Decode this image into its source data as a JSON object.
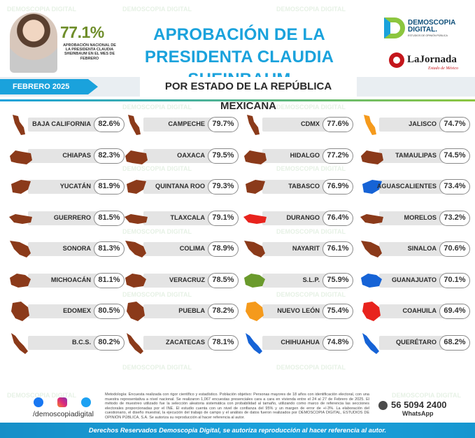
{
  "header": {
    "approval_value": "77.1%",
    "approval_caption": "APROBACIÓN NACIONAL DE LA PRESIDENTA CLAUDIA SHEINBAUM EN EL MES DE FEBRERO",
    "title_line1": "APROBACIÓN DE LA",
    "title_line2": "PRESIDENTA CLAUDIA SHEINBAUM",
    "brand_name": "DEMOSCOPIA DIGITAL.",
    "brand_sub": "ESTUDIOS DE OPINIÓN PÚBLICA",
    "partner_name": "LaJornada",
    "partner_sub": "Estado de México"
  },
  "band": {
    "date_tag": "FEBRERO 2025",
    "subtitle": "POR ESTADO DE LA REPÚBLICA MEXICANA"
  },
  "chart_data": {
    "type": "table",
    "title": "APROBACIÓN DE LA PRESIDENTA CLAUDIA SHEINBAUM",
    "subtitle": "POR ESTADO DE LA REPÚBLICA MEXICANA",
    "national": 77.1,
    "states": [
      {
        "name": "BAJA CALIFORNIA",
        "value": 82.6,
        "label": "82.6%",
        "color": "#8b3a1a"
      },
      {
        "name": "CHIAPAS",
        "value": 82.3,
        "label": "82.3%",
        "color": "#8b3a1a"
      },
      {
        "name": "YUCATÁN",
        "value": 81.9,
        "label": "81.9%",
        "color": "#8b3a1a"
      },
      {
        "name": "GUERRERO",
        "value": 81.5,
        "label": "81.5%",
        "color": "#8b3a1a"
      },
      {
        "name": "SONORA",
        "value": 81.3,
        "label": "81.3%",
        "color": "#8b3a1a"
      },
      {
        "name": "MICHOACÁN",
        "value": 81.1,
        "label": "81.1%",
        "color": "#8b3a1a"
      },
      {
        "name": "EDOMEX",
        "value": 80.5,
        "label": "80.5%",
        "color": "#8b3a1a"
      },
      {
        "name": "B.C.S.",
        "value": 80.2,
        "label": "80.2%",
        "color": "#8b3a1a"
      },
      {
        "name": "CAMPECHE",
        "value": 79.7,
        "label": "79.7%",
        "color": "#8b3a1a"
      },
      {
        "name": "OAXACA",
        "value": 79.5,
        "label": "79.5%",
        "color": "#8b3a1a"
      },
      {
        "name": "QUINTANA ROO",
        "value": 79.3,
        "label": "79.3%",
        "color": "#8b3a1a"
      },
      {
        "name": "TLAXCALA",
        "value": 79.1,
        "label": "79.1%",
        "color": "#8b3a1a"
      },
      {
        "name": "COLIMA",
        "value": 78.9,
        "label": "78.9%",
        "color": "#8b3a1a"
      },
      {
        "name": "VERACRUZ",
        "value": 78.5,
        "label": "78.5%",
        "color": "#8b3a1a"
      },
      {
        "name": "PUEBLA",
        "value": 78.2,
        "label": "78.2%",
        "color": "#8b3a1a"
      },
      {
        "name": "ZACATECAS",
        "value": 78.1,
        "label": "78.1%",
        "color": "#8b3a1a"
      },
      {
        "name": "CDMX",
        "value": 77.6,
        "label": "77.6%",
        "color": "#8b3a1a"
      },
      {
        "name": "HIDALGO",
        "value": 77.2,
        "label": "77.2%",
        "color": "#8b3a1a"
      },
      {
        "name": "TABASCO",
        "value": 76.9,
        "label": "76.9%",
        "color": "#8b3a1a"
      },
      {
        "name": "DURANGO",
        "value": 76.4,
        "label": "76.4%",
        "color": "#e8231d"
      },
      {
        "name": "NAYARIT",
        "value": 76.1,
        "label": "76.1%",
        "color": "#8b3a1a"
      },
      {
        "name": "S.L.P.",
        "value": 75.9,
        "label": "75.9%",
        "color": "#6a9a2c"
      },
      {
        "name": "NUEVO LEÓN",
        "value": 75.4,
        "label": "75.4%",
        "color": "#f59a1c"
      },
      {
        "name": "CHIHUAHUA",
        "value": 74.8,
        "label": "74.8%",
        "color": "#1663d6"
      },
      {
        "name": "JALISCO",
        "value": 74.7,
        "label": "74.7%",
        "color": "#f59a1c"
      },
      {
        "name": "TAMAULIPAS",
        "value": 74.5,
        "label": "74.5%",
        "color": "#8b3a1a"
      },
      {
        "name": "AGUASCALIENTES",
        "value": 73.4,
        "label": "73.4%",
        "color": "#1663d6"
      },
      {
        "name": "MORELOS",
        "value": 73.2,
        "label": "73.2%",
        "color": "#8b3a1a"
      },
      {
        "name": "SINALOA",
        "value": 70.6,
        "label": "70.6%",
        "color": "#8b3a1a"
      },
      {
        "name": "GUANAJUATO",
        "value": 70.1,
        "label": "70.1%",
        "color": "#1663d6"
      },
      {
        "name": "COAHUILA",
        "value": 69.4,
        "label": "69.4%",
        "color": "#e8231d"
      },
      {
        "name": "QUERÉTARO",
        "value": 68.2,
        "label": "68.2%",
        "color": "#1663d6"
      }
    ]
  },
  "watermark_text": "DEMOSCOPIA DIGITAL",
  "footer": {
    "methodology": "Metodología: Encuesta realizada con rigor científico y estadístico. Población objetivo: Personas mayores de 18 años con identificación electoral, con una muestra representativa a nivel nacional. Se realizaron 1,067 encuestas presenciales cara a cara en vivienda entre el 24 al 27 de Febrero de 2025. El método de muestreo utilizado fue la selección aleatoria sistemática con probabilidad al tamaño, utilizando como marco de referencia las secciones electorales proporcionadas por el INE. El estudio cuenta con un nivel de confianza del 95% y un margen de error de +/-3%. La elaboración del cuestionario, el diseño muestral, la ejecución del trabajo de campo y el análisis de datos fueron realizados por DEMOSCOPIA DIGITAL, ESTUDIOS DE OPINIÓN PÚBLICA, S.A. Se autoriza su reproducción al hacer referencia al autor.",
    "social_handle": "/demoscopiadigital",
    "whatsapp_number": "56 5094 2400",
    "whatsapp_label": "WhatsApp",
    "rights": "Derechos Reservados Demoscopia Digital, se autoriza reproducción al hacer referencia al autor."
  }
}
